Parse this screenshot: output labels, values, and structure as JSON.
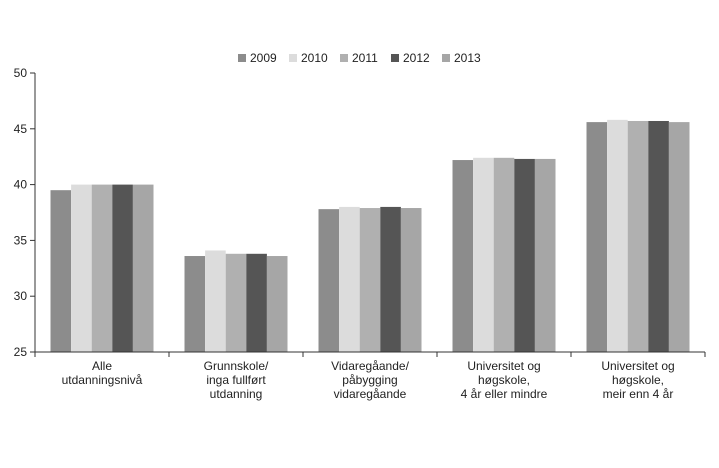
{
  "chart_data": {
    "type": "bar",
    "title": "",
    "xlabel": "",
    "ylabel": "",
    "ylim": [
      25,
      50
    ],
    "yticks": [
      25,
      30,
      35,
      40,
      45,
      50
    ],
    "grid": false,
    "legend_position": "top-center",
    "categories": [
      [
        "Alle",
        "utdanningsnivå"
      ],
      [
        "Grunnskole/",
        "inga fullført",
        "utdanning"
      ],
      [
        "Vidaregåande/",
        "påbygging",
        "vidaregåande"
      ],
      [
        "Universitet og",
        "høgskole,",
        "4 år eller mindre"
      ],
      [
        "Universitet og",
        "høgskole,",
        "meir enn 4 år"
      ]
    ],
    "series": [
      {
        "name": "2009",
        "color": "#8c8c8c",
        "values": [
          39.5,
          33.6,
          37.8,
          42.2,
          45.6
        ]
      },
      {
        "name": "2010",
        "color": "#dcdcdc",
        "values": [
          40.0,
          34.1,
          38.0,
          42.4,
          45.8
        ]
      },
      {
        "name": "2011",
        "color": "#b0b0b0",
        "values": [
          40.0,
          33.8,
          37.9,
          42.4,
          45.7
        ]
      },
      {
        "name": "2012",
        "color": "#555555",
        "values": [
          40.0,
          33.8,
          38.0,
          42.3,
          45.7
        ]
      },
      {
        "name": "2013",
        "color": "#a6a6a6",
        "values": [
          40.0,
          33.6,
          37.9,
          42.3,
          45.6
        ]
      }
    ]
  }
}
